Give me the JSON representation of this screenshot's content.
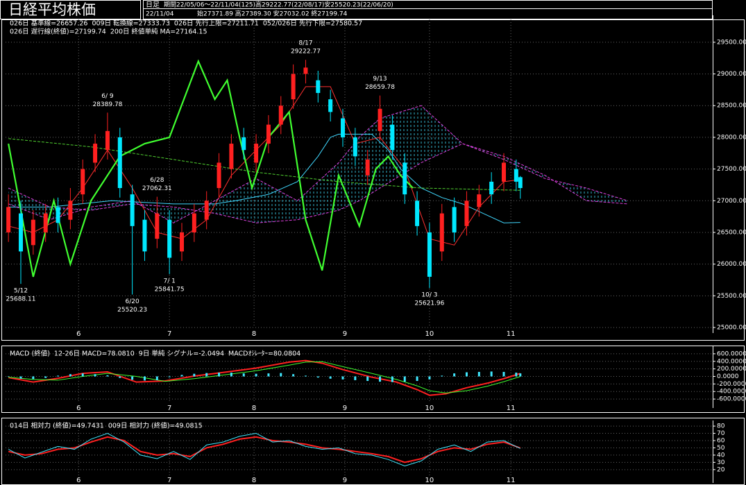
{
  "header": {
    "title": "日経平均株価",
    "interval": "日足",
    "period": "期間22/05/06～22/11/04(125)高29222.77(22/08/17)安25520.23(22/06/20)",
    "date": "22/11/04",
    "ohlc": "始27371.89 高27389.30 安27032.02 終27199.74"
  },
  "chart_data": [
    {
      "type": "candlestick",
      "up_color": "#ff2020",
      "down_color": "#00e8ff",
      "grid": true,
      "cloud_color": "#40e0ff",
      "xlim": [
        -0.7,
        170.6
      ],
      "xticks": [
        {
          "value": 17,
          "label": "6"
        },
        {
          "value": 39,
          "label": "7"
        },
        {
          "value": 59.5,
          "label": "8"
        },
        {
          "value": 81.5,
          "label": "9"
        },
        {
          "value": 102,
          "label": "10"
        },
        {
          "value": 121.7,
          "label": "11"
        }
      ],
      "ylim": [
        25000,
        29860
      ],
      "yticks": [
        {
          "value": 29500,
          "label": "29500.00"
        },
        {
          "value": 29000,
          "label": "29000.00"
        },
        {
          "value": 28500,
          "label": "28500.00"
        },
        {
          "value": 28000,
          "label": "28000.00"
        },
        {
          "value": 27500,
          "label": "27500.00"
        },
        {
          "value": 27000,
          "label": "27000.00"
        },
        {
          "value": 26500,
          "label": "26500.00"
        },
        {
          "value": 26000,
          "label": "26000.00"
        },
        {
          "value": 25500,
          "label": "25500.00"
        },
        {
          "value": 25000,
          "label": "25000.00"
        }
      ],
      "candles": {
        "x": [
          0,
          3,
          6,
          9,
          12,
          15,
          18,
          21,
          24,
          27,
          30,
          33,
          36,
          39,
          42,
          45,
          48,
          51,
          54,
          57,
          60,
          63,
          66,
          69,
          72,
          75,
          78,
          81,
          84,
          87,
          90,
          93,
          96,
          99,
          102,
          105,
          108,
          111,
          114,
          117,
          120,
          123,
          124
        ],
        "open": [
          26500,
          26800,
          26300,
          26500,
          26900,
          26700,
          27100,
          27600,
          27800,
          28000,
          27100,
          26700,
          26400,
          26700,
          26200,
          26500,
          26700,
          27200,
          27500,
          28000,
          27600,
          27900,
          28200,
          28600,
          29000,
          28900,
          28600,
          28300,
          28000,
          27400,
          28100,
          28200,
          27600,
          27000,
          26500,
          26200,
          26900,
          26600,
          26900,
          27300,
          27300,
          27500,
          27371.89
        ],
        "high": [
          27100,
          27000,
          26850,
          26950,
          27050,
          27200,
          27650,
          28050,
          28389.78,
          28150,
          27250,
          26850,
          27062.31,
          26850,
          26650,
          26950,
          27150,
          27750,
          28050,
          28150,
          28050,
          28350,
          28650,
          29150,
          29222.77,
          29050,
          28750,
          28450,
          28150,
          27800,
          28659.78,
          28350,
          27750,
          27150,
          26650,
          26950,
          27050,
          27150,
          27250,
          27450,
          27750,
          27650,
          27389.3
        ],
        "low": [
          26350,
          25688.11,
          26150,
          26350,
          26500,
          26550,
          26950,
          27450,
          27650,
          27050,
          25520.23,
          26050,
          26250,
          25841.75,
          26050,
          26350,
          26550,
          27050,
          27350,
          27650,
          27450,
          27750,
          28050,
          28450,
          28850,
          28550,
          28250,
          27850,
          27550,
          27250,
          27950,
          27650,
          26950,
          26450,
          25621.96,
          26050,
          26350,
          26450,
          26750,
          26950,
          27150,
          27150,
          27032.02
        ],
        "close": [
          26900,
          26200,
          26700,
          26800,
          26650,
          27000,
          27500,
          27900,
          28100,
          27200,
          26600,
          26200,
          26800,
          26100,
          26500,
          26800,
          27000,
          27600,
          27900,
          27800,
          27900,
          28200,
          28500,
          29000,
          29100,
          28700,
          28400,
          28000,
          27700,
          27650,
          28450,
          27800,
          27100,
          26600,
          25800,
          26800,
          26500,
          27000,
          27100,
          27100,
          27600,
          27300,
          27199.74
        ]
      },
      "annotations": [
        {
          "date": "5/12",
          "value": 25688.11
        },
        {
          "date": "6/ 9",
          "value": 28389.78
        },
        {
          "date": "6/20",
          "value": 25520.23
        },
        {
          "date": "6/28",
          "value": 27062.31
        },
        {
          "date": "7/ 1",
          "value": 25841.75
        },
        {
          "date": "8/17",
          "value": 29222.77
        },
        {
          "date": "9/13",
          "value": 28659.78
        },
        {
          "date": "10/ 3",
          "value": 25621.96
        }
      ],
      "series": [
        {
          "name": "026日 基準線=26657.26",
          "color": "#40d8ff",
          "width": 1,
          "x": [
            0,
            10,
            25,
            40,
            50,
            55,
            63,
            70,
            75,
            78,
            80,
            88,
            92,
            95,
            100,
            105,
            110,
            115,
            120,
            124
          ],
          "values": [
            26900,
            26900,
            27000,
            26950,
            26950,
            27000,
            27100,
            27300,
            27700,
            28000,
            28050,
            28050,
            27800,
            27500,
            27200,
            27050,
            26950,
            26800,
            26650,
            26657.26
          ]
        },
        {
          "name": "009日 転換線=27333.73",
          "color": "#ff3030",
          "width": 1,
          "x": [
            0,
            6,
            12,
            18,
            24,
            30,
            36,
            42,
            48,
            54,
            60,
            66,
            72,
            78,
            84,
            90,
            96,
            102,
            108,
            114,
            120,
            124
          ],
          "values": [
            26600,
            26500,
            26700,
            27200,
            27800,
            27200,
            26500,
            26400,
            26700,
            27400,
            27800,
            28200,
            28800,
            28800,
            27900,
            28000,
            27500,
            26400,
            26300,
            26900,
            27300,
            27333.73
          ]
        },
        {
          "name": "026日 先行上限=27211.71",
          "color": "#e040e0",
          "width": 1,
          "style": "dashed",
          "cloud": true,
          "x": [
            0,
            10,
            20,
            30,
            40,
            50,
            60,
            70,
            80,
            85,
            90,
            100,
            110,
            120,
            130,
            140,
            150
          ],
          "values": [
            26950,
            26700,
            26900,
            27000,
            26650,
            27000,
            27350,
            27000,
            27600,
            28000,
            28300,
            28500,
            27900,
            27650,
            27350,
            27200,
            27000
          ]
        },
        {
          "name": "052/026日 先行下限=27580.57",
          "color": "#e040e0",
          "width": 1,
          "style": "dashed",
          "cloud": true,
          "x": [
            0,
            10,
            20,
            30,
            40,
            50,
            60,
            70,
            80,
            85,
            90,
            100,
            110,
            120,
            130,
            140,
            150
          ],
          "values": [
            27200,
            26900,
            26850,
            26950,
            26900,
            26800,
            26650,
            26700,
            26850,
            27000,
            27200,
            27600,
            27900,
            27700,
            27400,
            27000,
            26950
          ]
        },
        {
          "name": "026日 遅行線(終値)=27199.74",
          "color": "#40ff30",
          "width": 2.2,
          "x": [
            0,
            6,
            11,
            15,
            20,
            27,
            33,
            39,
            46,
            50,
            53,
            56,
            59,
            63,
            68,
            72,
            76,
            80,
            85,
            89,
            92,
            95,
            98
          ],
          "values": [
            27900,
            25800,
            27000,
            26000,
            27000,
            27700,
            27900,
            28000,
            29200,
            28600,
            28900,
            28000,
            27200,
            28000,
            28400,
            26700,
            25900,
            27400,
            26600,
            27500,
            27700,
            27400,
            27199.74
          ]
        },
        {
          "name": "200日 終値単純 MA=27164.15",
          "color": "#50d030",
          "width": 1,
          "style": "dashed",
          "x": [
            0,
            20,
            40,
            60,
            80,
            100,
            124
          ],
          "values": [
            27980,
            27850,
            27650,
            27450,
            27300,
            27200,
            27164.15
          ]
        }
      ]
    },
    {
      "type": "combo",
      "title": "MACD (終値)",
      "grid": true,
      "xlim": [
        -0.7,
        170.6
      ],
      "xticks": [
        {
          "value": 17,
          "label": "6"
        },
        {
          "value": 39,
          "label": "7"
        },
        {
          "value": 59.5,
          "label": "8"
        },
        {
          "value": 81.5,
          "label": "9"
        },
        {
          "value": 102,
          "label": "10"
        },
        {
          "value": 121.7,
          "label": "11"
        }
      ],
      "ylim": [
        -690,
        690
      ],
      "yticks": [
        {
          "value": 600,
          "label": "600.0000"
        },
        {
          "value": 400,
          "label": "400.0000"
        },
        {
          "value": 200,
          "label": "200.0000"
        },
        {
          "value": 0,
          "label": "0.0000"
        },
        {
          "value": -200,
          "label": "-200.0000"
        },
        {
          "value": -400,
          "label": "-400.0000"
        },
        {
          "value": -600,
          "label": "-600.0000"
        }
      ],
      "series": [
        {
          "name": "12-26日 MACD=78.0810",
          "color": "#ff2020",
          "width": 2,
          "x": [
            0,
            6,
            12,
            18,
            24,
            31,
            38,
            45,
            53,
            60,
            68,
            72,
            76,
            81,
            88,
            94,
            99,
            102,
            106,
            111,
            116,
            120,
            124
          ],
          "values": [
            -30,
            -150,
            -50,
            80,
            120,
            -150,
            -120,
            10,
            120,
            220,
            380,
            420,
            350,
            180,
            -20,
            -150,
            -350,
            -500,
            -460,
            -300,
            -180,
            -60,
            78.08
          ]
        },
        {
          "name": "9日 単純 シグナル=-2.0494",
          "color": "#40ff30",
          "width": 1,
          "x": [
            0,
            6,
            12,
            18,
            24,
            31,
            38,
            45,
            53,
            60,
            68,
            72,
            76,
            81,
            88,
            94,
            99,
            102,
            106,
            111,
            116,
            120,
            124
          ],
          "values": [
            -20,
            -80,
            -100,
            0,
            80,
            0,
            -130,
            -60,
            50,
            150,
            300,
            380,
            390,
            260,
            80,
            -80,
            -250,
            -380,
            -440,
            -380,
            -260,
            -140,
            -2.05
          ]
        },
        {
          "name": "MACDｵｼﾚｰﾀｰ=80.0804",
          "color": "#40e8ff",
          "kind": "bar",
          "x": [
            0,
            3,
            6,
            9,
            12,
            15,
            18,
            21,
            24,
            27,
            30,
            33,
            36,
            39,
            42,
            45,
            48,
            51,
            54,
            57,
            60,
            63,
            66,
            69,
            72,
            75,
            78,
            81,
            84,
            87,
            90,
            93,
            96,
            99,
            102,
            105,
            108,
            111,
            114,
            117,
            120,
            123,
            124
          ],
          "values": [
            -10,
            -60,
            -70,
            -40,
            20,
            60,
            80,
            60,
            30,
            -40,
            -90,
            -110,
            -100,
            -20,
            40,
            70,
            90,
            100,
            100,
            80,
            70,
            80,
            90,
            60,
            20,
            -30,
            -60,
            -80,
            -100,
            -120,
            -140,
            -150,
            -140,
            -120,
            -80,
            20,
            80,
            110,
            120,
            130,
            120,
            100,
            80.08
          ]
        }
      ]
    },
    {
      "type": "line",
      "grid": true,
      "xlim": [
        -0.7,
        170.6
      ],
      "xticks": [
        {
          "value": 17,
          "label": "6"
        },
        {
          "value": 39,
          "label": "7"
        },
        {
          "value": 59.5,
          "label": "8"
        },
        {
          "value": 81.5,
          "label": "9"
        },
        {
          "value": 102,
          "label": "10"
        },
        {
          "value": 121.7,
          "label": "11"
        }
      ],
      "ylim": [
        9.3,
        82
      ],
      "yticks": [
        80,
        70,
        60,
        50,
        40,
        30,
        20
      ],
      "series": [
        {
          "name": "014日 相対力 (終値)=49.7431",
          "color": "#ff2020",
          "width": 2,
          "x": [
            0,
            4,
            8,
            12,
            16,
            20,
            24,
            28,
            32,
            36,
            40,
            44,
            48,
            52,
            56,
            60,
            64,
            68,
            72,
            76,
            80,
            84,
            88,
            92,
            96,
            100,
            104,
            108,
            112,
            116,
            120,
            124
          ],
          "values": [
            45,
            40,
            42,
            48,
            50,
            58,
            65,
            60,
            45,
            40,
            42,
            38,
            50,
            55,
            62,
            65,
            60,
            58,
            55,
            50,
            48,
            45,
            42,
            38,
            30,
            35,
            45,
            50,
            48,
            55,
            58,
            49.74
          ]
        },
        {
          "name": "009日 相対力 (終値)=49.0815",
          "color": "#40e8ff",
          "width": 1,
          "x": [
            0,
            4,
            8,
            12,
            16,
            20,
            24,
            28,
            32,
            36,
            40,
            44,
            48,
            52,
            56,
            60,
            64,
            68,
            72,
            76,
            80,
            84,
            88,
            92,
            96,
            100,
            104,
            108,
            112,
            116,
            120,
            124
          ],
          "values": [
            48,
            36,
            44,
            52,
            48,
            62,
            70,
            58,
            40,
            35,
            45,
            34,
            54,
            58,
            66,
            70,
            58,
            60,
            52,
            48,
            50,
            42,
            40,
            34,
            25,
            32,
            48,
            54,
            45,
            58,
            60,
            49.08
          ]
        }
      ]
    }
  ]
}
